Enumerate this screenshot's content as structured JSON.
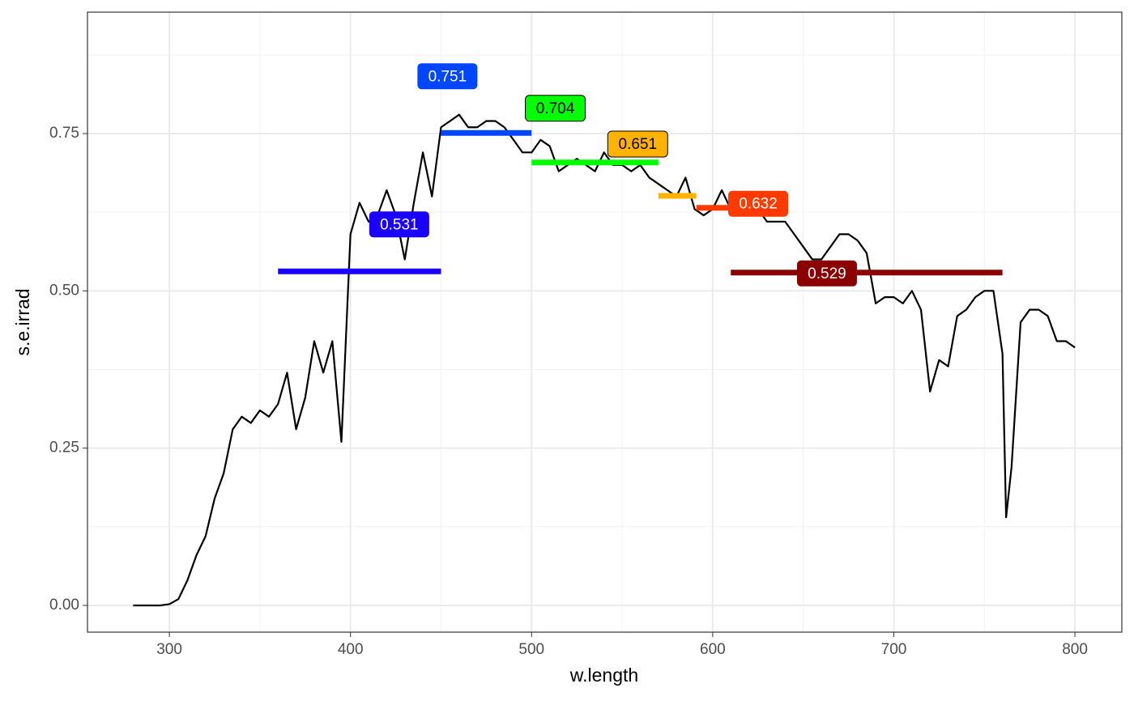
{
  "chart_data": {
    "type": "line",
    "x_label": "w.length",
    "y_label": "s.e.irrad",
    "x": [
      280,
      285,
      290,
      295,
      300,
      305,
      310,
      315,
      320,
      325,
      330,
      335,
      340,
      345,
      350,
      355,
      360,
      365,
      370,
      375,
      380,
      385,
      390,
      395,
      400,
      405,
      410,
      415,
      420,
      425,
      430,
      435,
      440,
      445,
      450,
      455,
      460,
      465,
      470,
      475,
      480,
      485,
      490,
      495,
      500,
      505,
      510,
      515,
      520,
      525,
      530,
      535,
      540,
      545,
      550,
      555,
      560,
      565,
      570,
      575,
      580,
      585,
      590,
      595,
      600,
      605,
      610,
      615,
      620,
      625,
      630,
      635,
      640,
      645,
      650,
      655,
      660,
      665,
      670,
      675,
      680,
      685,
      690,
      695,
      700,
      705,
      710,
      715,
      720,
      725,
      730,
      735,
      740,
      745,
      750,
      755,
      760,
      762,
      765,
      770,
      775,
      780,
      785,
      790,
      795,
      800
    ],
    "series": [
      {
        "color": "#000000",
        "values": [
          0,
          0,
          0,
          0,
          0.002,
          0.01,
          0.04,
          0.08,
          0.11,
          0.17,
          0.21,
          0.28,
          0.3,
          0.29,
          0.31,
          0.3,
          0.32,
          0.37,
          0.28,
          0.33,
          0.42,
          0.37,
          0.42,
          0.26,
          0.59,
          0.64,
          0.61,
          0.62,
          0.66,
          0.62,
          0.55,
          0.64,
          0.72,
          0.65,
          0.76,
          0.77,
          0.78,
          0.76,
          0.76,
          0.77,
          0.77,
          0.76,
          0.74,
          0.72,
          0.72,
          0.74,
          0.73,
          0.69,
          0.7,
          0.71,
          0.7,
          0.69,
          0.72,
          0.7,
          0.7,
          0.69,
          0.7,
          0.68,
          0.67,
          0.66,
          0.65,
          0.68,
          0.63,
          0.62,
          0.63,
          0.66,
          0.63,
          0.62,
          0.62,
          0.63,
          0.61,
          0.61,
          0.61,
          0.59,
          0.57,
          0.55,
          0.55,
          0.57,
          0.59,
          0.59,
          0.58,
          0.56,
          0.48,
          0.49,
          0.49,
          0.48,
          0.5,
          0.47,
          0.34,
          0.39,
          0.38,
          0.46,
          0.47,
          0.49,
          0.5,
          0.5,
          0.4,
          0.14,
          0.22,
          0.45,
          0.47,
          0.47,
          0.46,
          0.42,
          0.42,
          0.41
        ]
      }
    ],
    "bands": [
      {
        "w_range": [
          360,
          450
        ],
        "value": 0.531,
        "color": "#1a00ff",
        "label_text_color": "#ffffff"
      },
      {
        "w_range": [
          450,
          500
        ],
        "value": 0.751,
        "color": "#0046ff",
        "label_text_color": "#ffffff"
      },
      {
        "w_range": [
          500,
          570
        ],
        "value": 0.704,
        "color": "#00ff00",
        "label_text_color": "#000000"
      },
      {
        "w_range": [
          570,
          591
        ],
        "value": 0.651,
        "color": "#ffb300",
        "label_text_color": "#000000"
      },
      {
        "w_range": [
          591,
          610
        ],
        "value": 0.632,
        "color": "#ff3a00",
        "label_text_color": "#ffffff"
      },
      {
        "w_range": [
          610,
          760
        ],
        "value": 0.529,
        "color": "#8b0000",
        "label_text_color": "#ffffff"
      }
    ],
    "xlim": [
      254.8,
      825.9
    ],
    "xticks": [
      300,
      400,
      500,
      600,
      700,
      800
    ],
    "ylim": [
      -0.0425,
      0.943
    ],
    "yticks": [
      {
        "value": 0,
        "label": "0.00"
      },
      0.25,
      {
        "value": 0.5,
        "label": "0.50"
      },
      0.75
    ],
    "grid": true
  }
}
